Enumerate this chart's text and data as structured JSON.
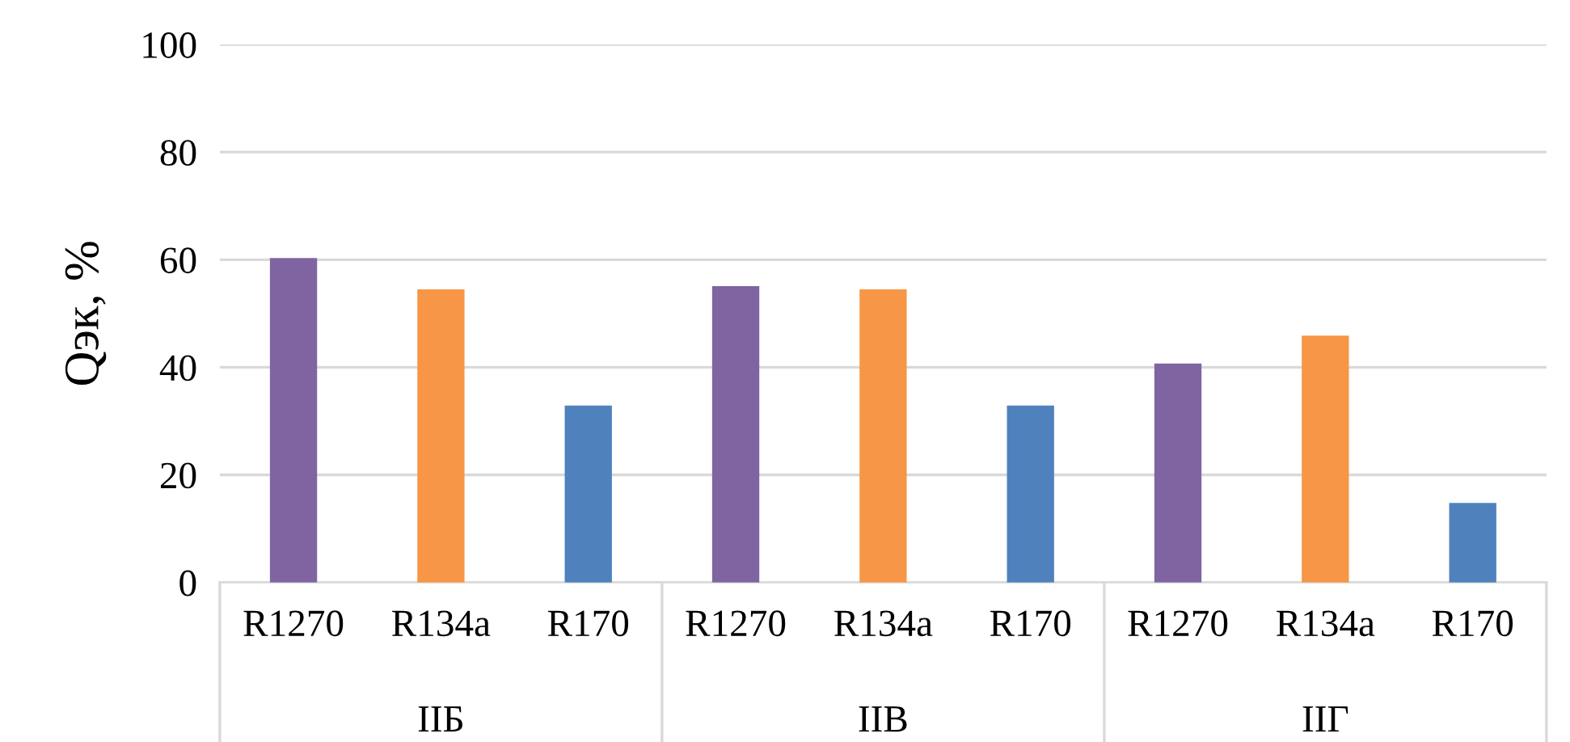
{
  "chart_data": {
    "type": "bar",
    "ylabel": "Qэк, %",
    "categories": [
      "R1270",
      "R134a",
      "R170",
      "R1270",
      "R134a",
      "R170",
      "R1270",
      "R134a",
      "R170"
    ],
    "values": [
      60.3,
      54.5,
      32.9,
      55.1,
      54.5,
      32.9,
      40.7,
      45.9,
      14.8
    ],
    "colors": [
      "#8064a2",
      "#f79646",
      "#4f81bd",
      "#8064a2",
      "#f79646",
      "#4f81bd",
      "#8064a2",
      "#f79646",
      "#4f81bd"
    ],
    "annotations": [
      "IIБ",
      "IIВ",
      "IIГ"
    ],
    "ylim": [
      0,
      100
    ],
    "yticks": [
      0,
      20,
      40,
      60,
      80,
      100
    ],
    "grid": "y"
  }
}
